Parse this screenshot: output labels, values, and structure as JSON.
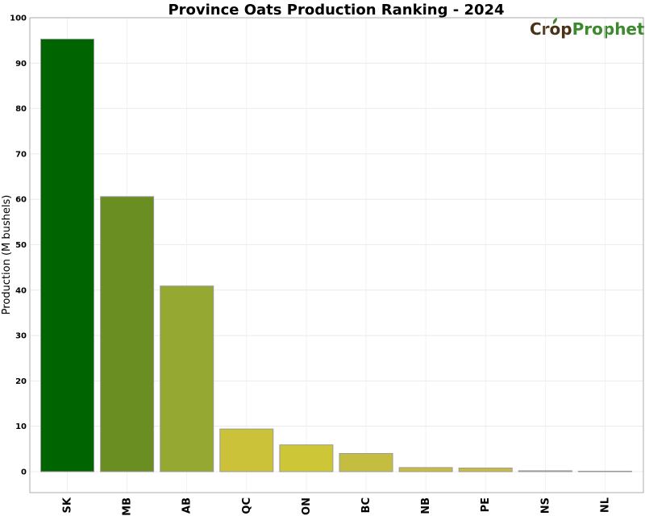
{
  "chart_data": {
    "type": "bar",
    "title": "Province Oats Production Ranking - 2024",
    "xlabel": "",
    "ylabel": "Production (M bushels)",
    "ylim": [
      0,
      100
    ],
    "yticks": [
      0,
      10,
      20,
      30,
      40,
      50,
      60,
      70,
      80,
      90,
      100
    ],
    "grid": true,
    "categories": [
      "SK",
      "MB",
      "AB",
      "QC",
      "ON",
      "BC",
      "NB",
      "PE",
      "NS",
      "NL"
    ],
    "values": [
      95.3,
      60.6,
      40.9,
      9.4,
      5.9,
      4.0,
      0.9,
      0.8,
      0.2,
      0.1
    ],
    "colors": [
      "#006400",
      "#6b8e23",
      "#94a832",
      "#cbc23a",
      "#cdc637",
      "#c5bd3f",
      "#c9bc44",
      "#cabb45",
      "#b8b8b8",
      "#bdbdbd"
    ]
  },
  "logo": {
    "crop": "Crop",
    "prophet": "Prophet"
  }
}
